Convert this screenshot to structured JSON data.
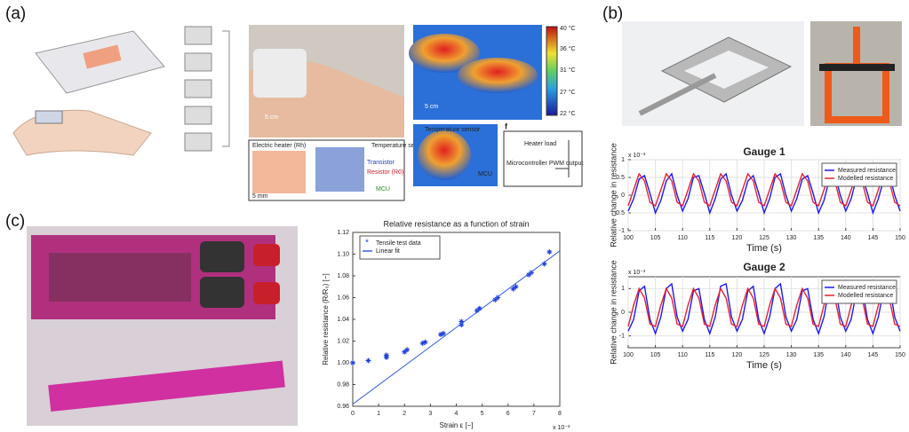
{
  "panels": [
    "(a)",
    "(b)",
    "(c)"
  ],
  "panel_a": {
    "labels": [
      "5 cm",
      "40 °C",
      "36 °C",
      "31 °C",
      "27 °C",
      "22 °C",
      "Electric heater (Rh)",
      "Temperature sensor",
      "Transistor",
      "Resistor (R0)",
      "MCU",
      "5 mm",
      "f",
      "Heater load",
      "Microcontroller PWM output",
      "Temperature sensor",
      "MCU",
      "5 cm"
    ]
  },
  "chart_data": [
    {
      "type": "scatter",
      "title": "Relative resistance as a function of strain",
      "xlabel": "Strain ε [−]",
      "ylabel": "Relative resistance (R/R₀) [−]",
      "xscale_note": "x 10⁻³",
      "xlim": [
        0,
        8
      ],
      "xticks": [
        0,
        1,
        2,
        3,
        4,
        5,
        6,
        7,
        8
      ],
      "ylim": [
        0.96,
        1.12
      ],
      "yticks": [
        0.96,
        0.98,
        {
          "value": 1.0,
          "label": "1.00"
        },
        1.02,
        1.04,
        1.06,
        1.08,
        {
          "value": 1.1,
          "label": "1.10"
        },
        1.12
      ],
      "grid": false,
      "legend": "upper left",
      "series": [
        {
          "name": "Tensile test data",
          "color": "#1f3fd8",
          "type": "scatter",
          "x": [
            0,
            0.6,
            1.3,
            1.3,
            2.0,
            2.1,
            2.7,
            2.8,
            3.4,
            3.5,
            4.2,
            4.2,
            4.8,
            4.9,
            5.5,
            5.6,
            6.2,
            6.3,
            6.8,
            6.9,
            7.4,
            7.6
          ],
          "values": [
            1.0,
            1.002,
            1.005,
            1.007,
            1.01,
            1.012,
            1.018,
            1.019,
            1.026,
            1.027,
            1.035,
            1.038,
            1.048,
            1.05,
            1.058,
            1.06,
            1.068,
            1.07,
            1.081,
            1.083,
            1.091,
            1.102
          ]
        },
        {
          "name": "Linear fit",
          "color": "#3a5fe0",
          "type": "line",
          "x": [
            0,
            8
          ],
          "values": [
            0.962,
            1.103
          ]
        }
      ]
    },
    {
      "type": "line",
      "title": "Gauge 1",
      "xlabel": "Time (s)",
      "ylabel": "Relative change in resistance",
      "yscale_note": "x 10⁻³",
      "xlim": [
        100,
        150
      ],
      "xticks": [
        100,
        105,
        110,
        115,
        120,
        125,
        130,
        135,
        140,
        145,
        150
      ],
      "ylim": [
        -1,
        1
      ],
      "yticks": [
        -1,
        -0.5,
        0,
        0.5,
        1
      ],
      "grid": true,
      "legend": "upper right",
      "x": [
        100,
        101,
        102,
        103,
        104,
        105,
        106,
        107,
        108,
        109,
        110,
        111,
        112,
        113,
        114,
        115,
        116,
        117,
        118,
        119,
        120,
        121,
        122,
        123,
        124,
        125,
        126,
        127,
        128,
        129,
        130,
        131,
        132,
        133,
        134,
        135,
        136,
        137,
        138,
        139,
        140,
        141,
        142,
        143,
        144,
        145,
        146,
        147,
        148,
        149,
        150
      ],
      "series": [
        {
          "name": "Measured resistance",
          "color": "#1a1aff",
          "values": [
            -0.45,
            -0.1,
            0.45,
            0.55,
            0.05,
            -0.5,
            -0.15,
            0.4,
            0.6,
            0.0,
            -0.45,
            -0.1,
            0.5,
            0.55,
            0.05,
            -0.5,
            -0.1,
            0.45,
            0.6,
            0.0,
            -0.45,
            -0.15,
            0.4,
            0.55,
            0.05,
            -0.5,
            -0.1,
            0.5,
            0.6,
            0.0,
            -0.45,
            -0.1,
            0.45,
            0.55,
            0.05,
            -0.5,
            -0.15,
            0.45,
            0.6,
            0.0,
            -0.45,
            -0.1,
            0.5,
            0.55,
            0.05,
            -0.5,
            -0.1,
            0.45,
            0.6,
            0.0,
            -0.45
          ]
        },
        {
          "name": "Modelled resistance",
          "color": "#e8202a",
          "values": [
            -0.3,
            0.15,
            0.6,
            0.4,
            -0.2,
            -0.3,
            0.15,
            0.6,
            0.4,
            -0.2,
            -0.3,
            0.15,
            0.6,
            0.4,
            -0.2,
            -0.3,
            0.15,
            0.6,
            0.4,
            -0.2,
            -0.3,
            0.15,
            0.6,
            0.4,
            -0.2,
            -0.3,
            0.15,
            0.6,
            0.4,
            -0.2,
            -0.3,
            0.15,
            0.6,
            0.4,
            -0.2,
            -0.3,
            0.15,
            0.6,
            0.4,
            -0.2,
            -0.3,
            0.15,
            0.6,
            0.4,
            -0.2,
            -0.3,
            0.15,
            0.6,
            0.4,
            -0.2,
            -0.3
          ]
        }
      ]
    },
    {
      "type": "line",
      "title": "Gauge 2",
      "xlabel": "Time (s)",
      "ylabel": "Relative change in resistance",
      "yscale_note": "x 10⁻³",
      "xlim": [
        100,
        150
      ],
      "xticks": [
        100,
        105,
        110,
        115,
        120,
        125,
        130,
        135,
        140,
        145,
        150
      ],
      "ylim": [
        -1.5,
        1.5
      ],
      "yticks": [
        -1,
        0,
        1
      ],
      "grid": true,
      "legend": "upper right",
      "x": [
        100,
        101,
        102,
        103,
        104,
        105,
        106,
        107,
        108,
        109,
        110,
        111,
        112,
        113,
        114,
        115,
        116,
        117,
        118,
        119,
        120,
        121,
        122,
        123,
        124,
        125,
        126,
        127,
        128,
        129,
        130,
        131,
        132,
        133,
        134,
        135,
        136,
        137,
        138,
        139,
        140,
        141,
        142,
        143,
        144,
        145,
        146,
        147,
        148,
        149,
        150
      ],
      "series": [
        {
          "name": "Measured resistance",
          "color": "#1a1aff",
          "values": [
            -0.8,
            -0.3,
            0.9,
            1.1,
            -0.3,
            -0.9,
            -0.2,
            1.0,
            1.2,
            -0.2,
            -0.8,
            -0.3,
            0.9,
            1.0,
            -0.3,
            -0.9,
            -0.2,
            1.1,
            1.2,
            -0.2,
            -0.8,
            -0.3,
            0.9,
            1.1,
            -0.3,
            -0.9,
            -0.2,
            1.0,
            1.2,
            -0.2,
            -0.8,
            -0.3,
            0.9,
            1.0,
            -0.3,
            -0.9,
            -0.2,
            1.1,
            1.2,
            -0.2,
            -0.8,
            -0.3,
            0.9,
            1.1,
            -0.3,
            -0.9,
            -0.2,
            1.0,
            1.2,
            -0.2,
            -0.8
          ]
        },
        {
          "name": "Modelled resistance",
          "color": "#e8202a",
          "values": [
            -0.6,
            0.3,
            1.0,
            0.6,
            -0.5,
            -0.6,
            0.3,
            1.0,
            0.6,
            -0.5,
            -0.6,
            0.3,
            1.0,
            0.6,
            -0.5,
            -0.6,
            0.3,
            1.0,
            0.6,
            -0.5,
            -0.6,
            0.3,
            1.0,
            0.6,
            -0.5,
            -0.6,
            0.3,
            1.0,
            0.6,
            -0.5,
            -0.6,
            0.3,
            1.0,
            0.6,
            -0.5,
            -0.6,
            0.3,
            1.0,
            0.6,
            -0.5,
            -0.6,
            0.3,
            1.0,
            0.6,
            -0.5,
            -0.6,
            0.3,
            1.0,
            0.6,
            -0.5,
            -0.6
          ]
        }
      ]
    }
  ]
}
